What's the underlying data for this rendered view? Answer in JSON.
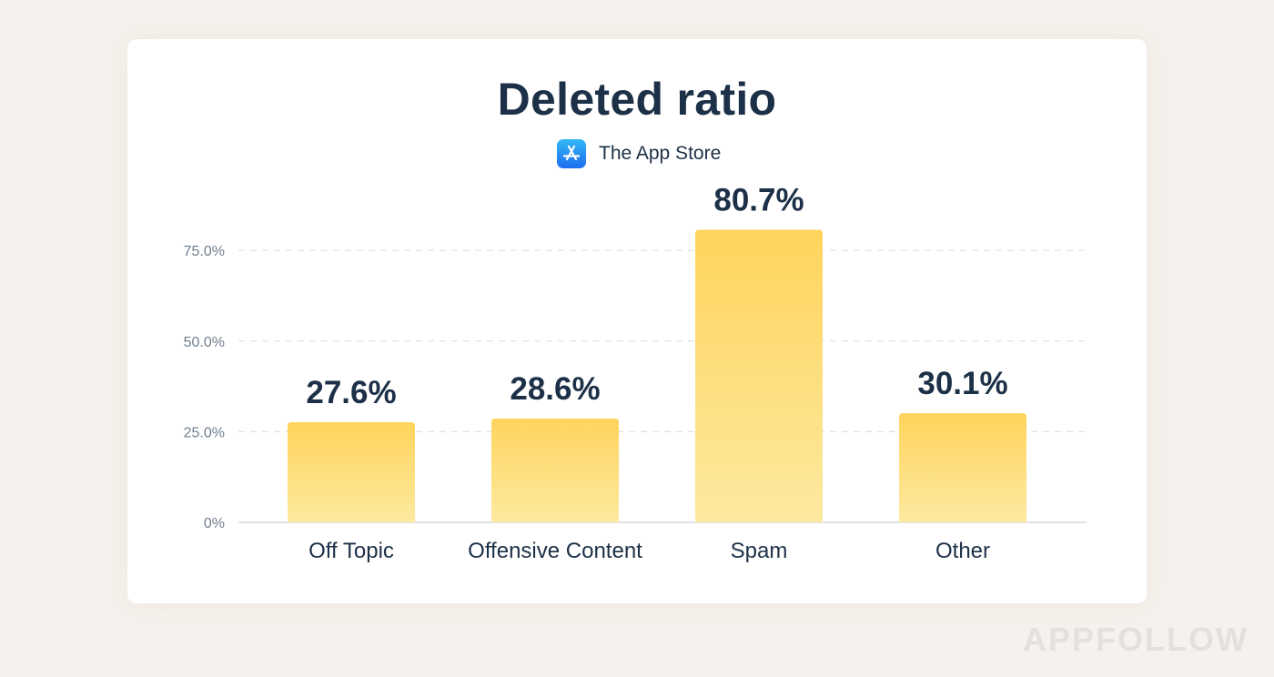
{
  "chart_data": {
    "type": "bar",
    "title": "Deleted ratio",
    "subtitle": "The App Store",
    "categories": [
      "Off Topic",
      "Offensive Content",
      "Spam",
      "Other"
    ],
    "values": [
      27.6,
      28.6,
      80.7,
      30.1
    ],
    "value_labels": [
      "27.6%",
      "28.6%",
      "80.7%",
      "30.1%"
    ],
    "ylim": [
      0,
      85
    ],
    "yticks": [
      0,
      25,
      50,
      75
    ],
    "ytick_labels": [
      "0%",
      "25.0%",
      "50.0%",
      "75.0%"
    ],
    "grid": true,
    "legend": "none",
    "bar_color_top": "#fed45c",
    "bar_color_bottom": "#fde9a0"
  },
  "header": {
    "subtitle_icon": "app-store-icon"
  },
  "watermark": "APPFOLLOW"
}
